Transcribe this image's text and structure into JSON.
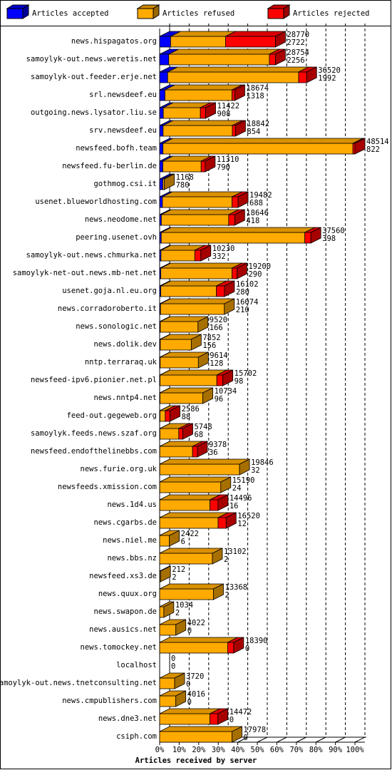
{
  "chart_data": {
    "type": "bar3d",
    "x_label": "Articles received by server",
    "categories": [
      "news.hispagatos.org",
      "samoylyk-out.news.weretis.net",
      "samoylyk-out.feeder.erje.net",
      "srl.newsdeef.eu",
      "outgoing.news.lysator.liu.se",
      "srv.newsdeef.eu",
      "newsfeed.bofh.team",
      "newsfeed.fu-berlin.de",
      "gothmog.csi.it",
      "usenet.blueworldhosting.com",
      "news.neodome.net",
      "peering.usenet.ovh",
      "samoylyk-out.news.chmurka.net",
      "samoylyk-net-out.news.mb-net.net",
      "usenet.goja.nl.eu.org",
      "news.corradoroberto.it",
      "news.sonologic.net",
      "news.dolik.dev",
      "nntp.terraraq.uk",
      "newsfeed-ipv6.pionier.net.pl",
      "news.nntp4.net",
      "feed-out.gegeweb.org",
      "samoylyk.feeds.news.szaf.org",
      "newsfeed.endofthelinebbs.com",
      "news.furie.org.uk",
      "newsfeeds.xmission.com",
      "news.1d4.us",
      "news.cgarbs.de",
      "news.niel.me",
      "news.bbs.nz",
      "newsfeed.xs3.de",
      "news.quux.org",
      "news.swapon.de",
      "news.ausics.net",
      "news.tomockey.net",
      "localhost",
      "samoylyk-out.news.tnetconsulting.net",
      "news.cmpublishers.com",
      "news.dne3.net",
      "csiph.com"
    ],
    "totals": [
      28770,
      28754,
      36520,
      18674,
      11422,
      18842,
      48514,
      11310,
      1168,
      19482,
      18646,
      37560,
      10230,
      19200,
      16102,
      16074,
      9520,
      7852,
      9614,
      15702,
      10734,
      2586,
      5748,
      9378,
      19846,
      15190,
      14496,
      16520,
      2422,
      13102,
      212,
      13368,
      1034,
      4022,
      18390,
      0,
      3720,
      4016,
      14472,
      17978
    ],
    "series": [
      {
        "name": "Articles accepted",
        "color": "#0000ff",
        "values": [
          2722,
          2256,
          1992,
          1318,
          908,
          854,
          822,
          790,
          780,
          688,
          418,
          398,
          332,
          290,
          280,
          210,
          166,
          156,
          128,
          98,
          96,
          88,
          68,
          36,
          32,
          24,
          16,
          12,
          6,
          2,
          2,
          2,
          2,
          0,
          0,
          0,
          0,
          0,
          0,
          0
        ]
      },
      {
        "name": "Articles refused",
        "color": "#ffaa00",
        "values": [
          13648,
          24998,
          32528,
          16656,
          9214,
          17188,
          47192,
          9520,
          388,
          17294,
          16728,
          35662,
          8398,
          17710,
          13822,
          15864,
          9354,
          7696,
          9486,
          14104,
          10638,
          1298,
          4680,
          8142,
          19814,
          15166,
          12480,
          14508,
          2416,
          13100,
          210,
          13366,
          1032,
          4022,
          16890,
          0,
          3720,
          4016,
          12472,
          17978
        ]
      },
      {
        "name": "Articles rejected",
        "color": "#ff0000",
        "values": [
          12400,
          1500,
          2000,
          700,
          1300,
          800,
          500,
          1000,
          0,
          1500,
          1500,
          1500,
          1500,
          1200,
          2000,
          0,
          0,
          0,
          0,
          1500,
          0,
          1200,
          1000,
          1200,
          0,
          0,
          2000,
          2000,
          0,
          0,
          0,
          0,
          0,
          0,
          1500,
          0,
          0,
          0,
          2000,
          0
        ]
      }
    ],
    "xlim": [
      0,
      48514
    ],
    "xticks": [
      {
        "value": 0,
        "label": "0%"
      },
      {
        "value": 4851.4,
        "label": "10%"
      },
      {
        "value": 9702.8,
        "label": "20%"
      },
      {
        "value": 14554.2,
        "label": "30%"
      },
      {
        "value": 19405.6,
        "label": "40%"
      },
      {
        "value": 24257,
        "label": "50%"
      },
      {
        "value": 29108.4,
        "label": "60%"
      },
      {
        "value": 33959.8,
        "label": "70%"
      },
      {
        "value": 38811.2,
        "label": "80%"
      },
      {
        "value": 43662.6,
        "label": "90%"
      },
      {
        "value": 48514,
        "label": "100%"
      }
    ],
    "grid": true
  }
}
